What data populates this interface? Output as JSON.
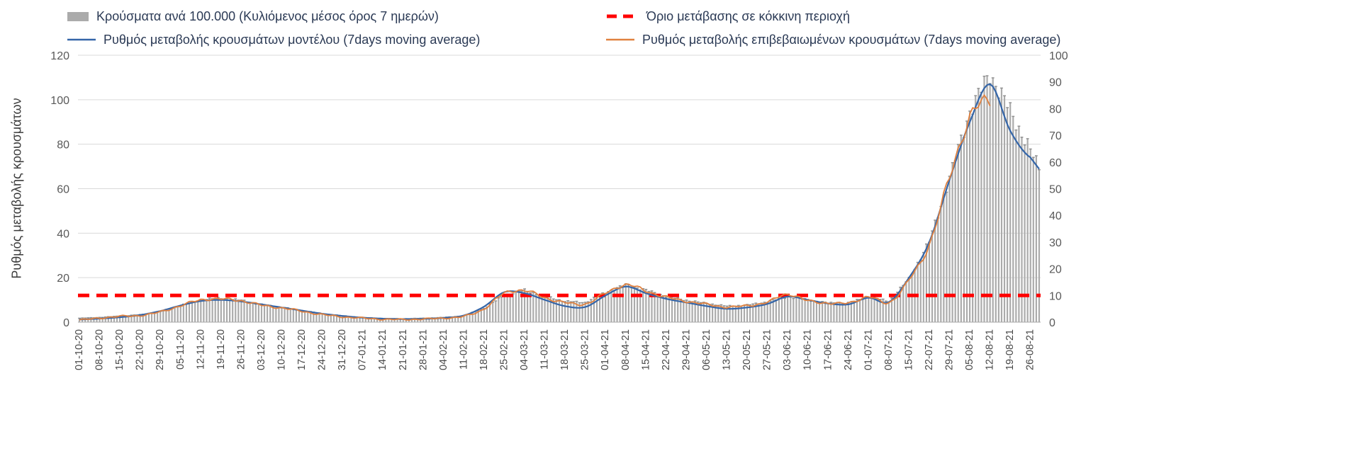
{
  "chart_data": {
    "type": "bar+line",
    "title": "",
    "ylabel_left": "Ρυθμός μεταβολής κρουσμάτων",
    "left_axis": {
      "min": 0,
      "max": 120,
      "step": 20,
      "ticks": [
        0,
        20,
        40,
        60,
        80,
        100,
        120
      ]
    },
    "right_axis": {
      "min": 0,
      "max": 100,
      "step": 10,
      "ticks": [
        0,
        10,
        20,
        30,
        40,
        50,
        60,
        70,
        80,
        90,
        100
      ]
    },
    "legend": [
      {
        "label": "Κρούσματα ανά 100.000 (Κυλιόμενος μέσος όρος 7 ημερών)",
        "type": "bar",
        "color": "#ababab"
      },
      {
        "label": "Όριο μετάβασης σε κόκκινη περιοχή",
        "type": "dashed-line",
        "color": "#ff0000"
      },
      {
        "label": "Ρυθμός μεταβολής κρουσμάτων μοντέλου (7days moving average)",
        "type": "line",
        "color": "#3465a8"
      },
      {
        "label": "Ρυθμός μεταβολής επιβεβαιωμένων κρουσμάτων (7days moving average)",
        "type": "line",
        "color": "#e0813f"
      }
    ],
    "threshold": {
      "value_left_axis": 12,
      "value_right_axis": 10
    },
    "categories": [
      "01-10-20",
      "08-10-20",
      "15-10-20",
      "22-10-20",
      "29-10-20",
      "05-11-20",
      "12-11-20",
      "19-11-20",
      "26-11-20",
      "03-12-20",
      "10-12-20",
      "17-12-20",
      "24-12-20",
      "31-12-20",
      "07-01-21",
      "14-01-21",
      "21-01-21",
      "28-01-21",
      "04-02-21",
      "11-02-21",
      "18-02-21",
      "25-02-21",
      "04-03-21",
      "11-03-21",
      "18-03-21",
      "25-03-21",
      "01-04-21",
      "08-04-21",
      "15-04-21",
      "22-04-21",
      "29-04-21",
      "06-05-21",
      "13-05-21",
      "20-05-21",
      "27-05-21",
      "03-06-21",
      "10-06-21",
      "17-06-21",
      "24-06-21",
      "01-07-21",
      "08-07-21",
      "15-07-21",
      "22-07-21",
      "29-07-21",
      "05-08-21",
      "12-08-21",
      "19-08-21",
      "26-08-21"
    ],
    "series": {
      "cases_per_100k": [
        1.3,
        1.6,
        2.1,
        2.6,
        3.8,
        6.0,
        8.3,
        8.8,
        8.0,
        6.4,
        5.4,
        4.2,
        3.0,
        2.2,
        1.6,
        1.2,
        1.1,
        1.3,
        1.6,
        2.2,
        5.0,
        10.0,
        11.8,
        9.5,
        7.6,
        7.2,
        11.0,
        13.8,
        11.8,
        9.5,
        8.0,
        6.8,
        5.8,
        6.2,
        7.4,
        9.4,
        8.2,
        7.0,
        7.0,
        9.4,
        7.6,
        16.0,
        30.0,
        54.0,
        79.0,
        93.0,
        79.0,
        64.0
      ],
      "model_rate": [
        1.2,
        1.6,
        2.2,
        3.2,
        5.0,
        7.5,
        9.5,
        10.0,
        9.3,
        8.0,
        6.6,
        5.2,
        3.8,
        2.8,
        2.0,
        1.6,
        1.4,
        1.5,
        1.9,
        3.0,
        7.0,
        13.5,
        13.0,
        10.0,
        7.2,
        6.8,
        12.0,
        16.0,
        13.0,
        10.5,
        8.8,
        7.2,
        6.0,
        6.6,
        8.2,
        11.5,
        10.0,
        8.4,
        8.0,
        11.0,
        9.0,
        20.0,
        36.0,
        64.0,
        90.0,
        107.0,
        86.0,
        74.0
      ],
      "confirmed_rate": [
        1.0,
        1.8,
        2.6,
        3.0,
        4.6,
        7.4,
        10.0,
        10.4,
        9.6,
        7.6,
        6.4,
        4.9,
        3.4,
        2.4,
        1.8,
        1.3,
        1.2,
        1.4,
        1.8,
        2.6,
        6.0,
        13.0,
        14.2,
        11.0,
        8.8,
        8.2,
        13.0,
        16.8,
        14.0,
        11.2,
        9.4,
        8.0,
        6.8,
        7.4,
        9.0,
        12.6,
        9.6,
        8.6,
        8.6,
        11.4,
        8.8,
        19.0,
        35.0,
        65.0,
        92.0,
        100.0,
        null,
        null
      ]
    },
    "colors": {
      "bar": "#ababab",
      "bar_cap": "#8f8f8f",
      "grid": "#d9d9d9",
      "baseline": "#a6a6a6",
      "axis_text": "#595959",
      "threshold": "#ff0000",
      "model": "#3465a8",
      "confirmed": "#e0813f"
    }
  }
}
